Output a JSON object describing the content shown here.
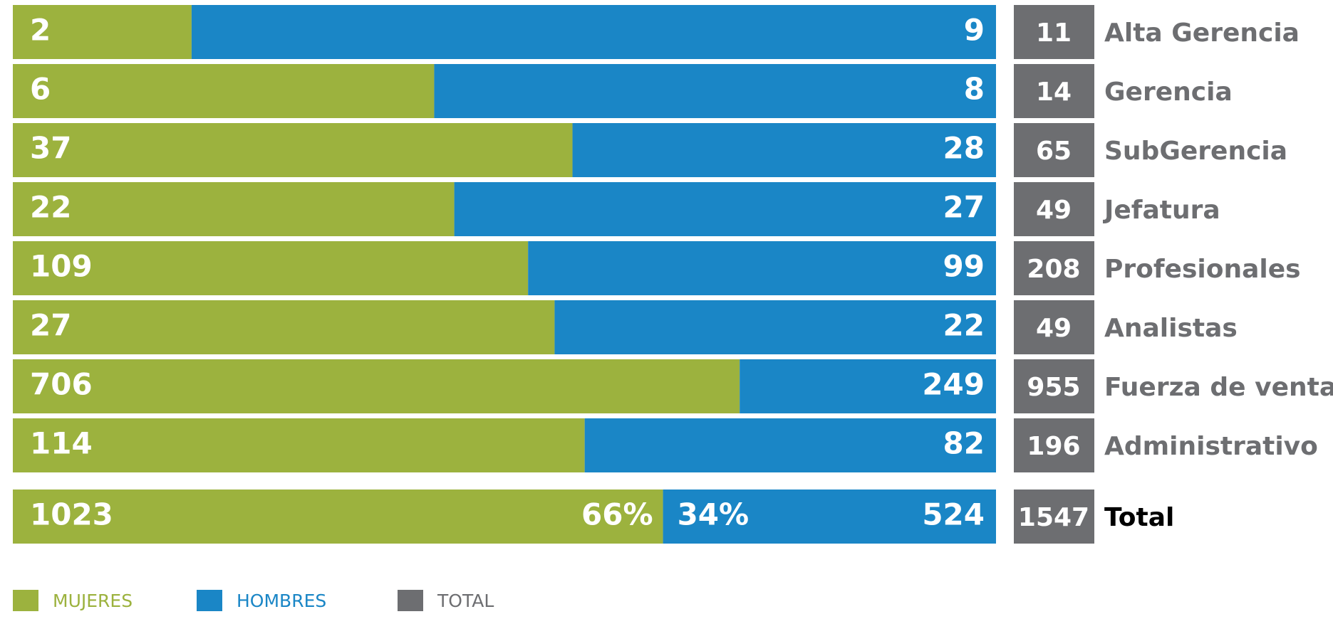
{
  "chart_data": {
    "type": "bar",
    "stacked": "percent",
    "orientation": "horizontal",
    "categories": [
      "Alta Gerencia",
      "Gerencia",
      "SubGerencia",
      "Jefatura",
      "Profesionales",
      "Analistas",
      "Fuerza de venta",
      "Administrativo",
      "Total"
    ],
    "series": [
      {
        "name": "MUJERES",
        "color": "#9cb23e",
        "values": [
          2,
          6,
          37,
          22,
          109,
          27,
          706,
          114,
          1023
        ]
      },
      {
        "name": "HOMBRES",
        "color": "#1a86c6",
        "values": [
          9,
          8,
          28,
          27,
          99,
          22,
          249,
          82,
          524
        ]
      },
      {
        "name": "TOTAL",
        "color": "#6d6e71",
        "values": [
          11,
          14,
          65,
          49,
          208,
          49,
          955,
          196,
          1547
        ]
      }
    ],
    "total_percent_labels": [
      "66%",
      "34%"
    ],
    "legend": "bottom-left"
  }
}
